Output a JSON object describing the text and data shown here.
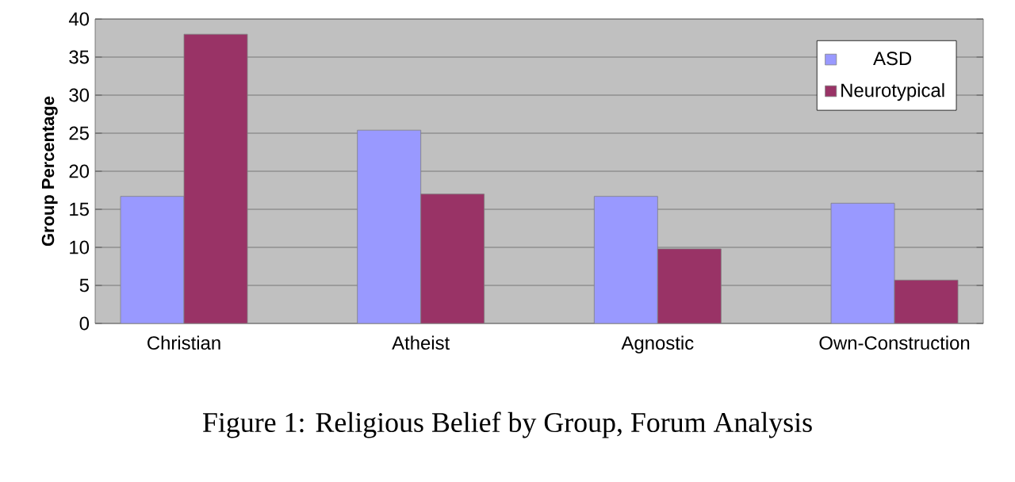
{
  "chart_data": {
    "type": "bar",
    "title": "Figure 1: Religious Belief by Group, Forum Analysis",
    "ylabel": "Group Percentage",
    "categories": [
      "Christian",
      "Atheist",
      "Agnostic",
      "Own-Construction"
    ],
    "series": [
      {
        "name": "ASD",
        "color": "#9999ff",
        "values": [
          16.7,
          25.4,
          16.7,
          15.8
        ]
      },
      {
        "name": "Neurotypical",
        "color": "#993366",
        "values": [
          38,
          17,
          9.8,
          5.7
        ]
      }
    ],
    "ylim": [
      0,
      40
    ],
    "yticks": [
      0,
      5,
      10,
      15,
      20,
      25,
      30,
      35,
      40
    ],
    "grid": "y",
    "legend": "top right"
  }
}
